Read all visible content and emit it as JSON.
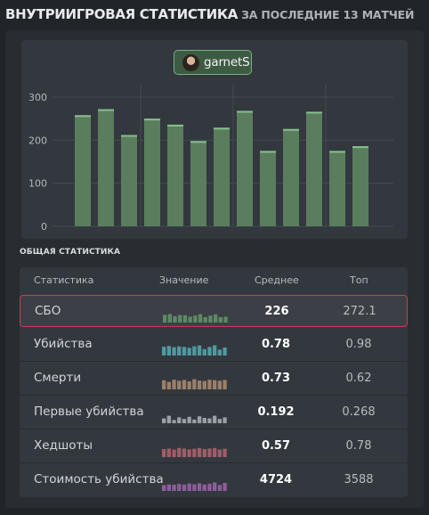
{
  "header": {
    "title": "ВНУТРИИГРОВАЯ СТАТИСТИКА",
    "subtitle": "ЗА ПОСЛЕДНИЕ 13 МАТЧЕЙ"
  },
  "player": {
    "name": "garnetS"
  },
  "chart_data": {
    "type": "bar",
    "ylim": [
      0,
      310
    ],
    "yticks": [
      "0",
      "100",
      "200",
      "300"
    ],
    "values": [
      258,
      272,
      212,
      250,
      236,
      198,
      229,
      268,
      175,
      226,
      266,
      175,
      186
    ],
    "grid": true,
    "colors": {
      "bar": "#5a7d5e",
      "bar_top": "#86c08d",
      "grid": "#444a50"
    }
  },
  "overall": {
    "label": "ОБЩАЯ СТАТИСТИКА",
    "columns": [
      "Статистика",
      "Значение",
      "Среднее",
      "Топ"
    ],
    "rows": [
      {
        "name": "СБО",
        "avg": "226",
        "top": "272.1",
        "highlighted": true,
        "color": "#5d8a63",
        "spark": [
          0.72,
          0.8,
          0.6,
          0.7,
          0.68,
          0.55,
          0.66,
          0.78,
          0.5,
          0.65,
          0.77,
          0.5,
          0.54
        ]
      },
      {
        "name": "Убийства",
        "avg": "0.78",
        "top": "0.98",
        "highlighted": false,
        "color": "#4f9aa0",
        "spark": [
          0.82,
          0.9,
          0.78,
          0.85,
          0.8,
          0.72,
          0.86,
          0.94,
          0.6,
          0.8,
          0.95,
          0.55,
          0.75
        ]
      },
      {
        "name": "Смерти",
        "avg": "0.73",
        "top": "0.62",
        "highlighted": false,
        "color": "#9c7f68",
        "spark": [
          0.85,
          0.7,
          0.9,
          0.8,
          0.88,
          0.75,
          0.95,
          0.82,
          0.78,
          0.9,
          0.86,
          0.8,
          0.88
        ]
      },
      {
        "name": "Первые убийства",
        "avg": "0.192",
        "top": "0.268",
        "highlighted": false,
        "color": "#9aa0a6",
        "spark": [
          0.45,
          0.7,
          0.3,
          0.55,
          0.4,
          0.6,
          0.35,
          0.65,
          0.5,
          0.45,
          0.7,
          0.4,
          0.55
        ]
      },
      {
        "name": "Хедшоты",
        "avg": "0.57",
        "top": "0.78",
        "highlighted": false,
        "color": "#9e5e68",
        "spark": [
          0.75,
          0.8,
          0.7,
          0.85,
          0.8,
          0.72,
          0.78,
          0.85,
          0.75,
          0.8,
          0.85,
          0.7,
          0.78
        ]
      },
      {
        "name": "Стоимость убийства",
        "avg": "4724",
        "top": "3588",
        "highlighted": false,
        "color": "#8c5e9a",
        "spark": [
          0.55,
          0.6,
          0.58,
          0.65,
          0.6,
          0.7,
          0.62,
          0.72,
          0.6,
          0.68,
          0.8,
          0.55,
          0.75
        ]
      }
    ]
  }
}
